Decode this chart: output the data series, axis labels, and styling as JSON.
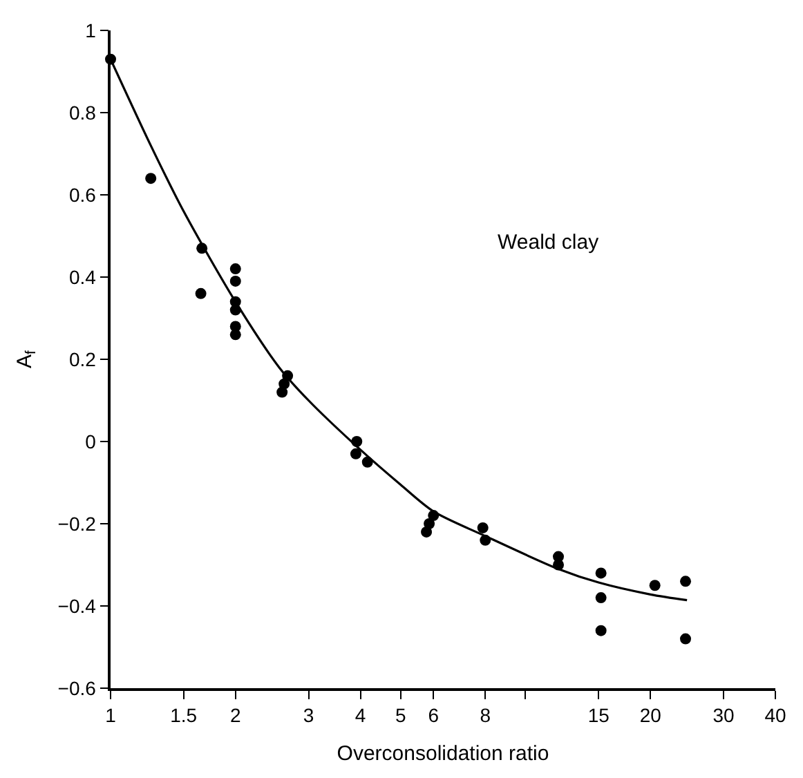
{
  "chart_data": {
    "type": "scatter",
    "xlabel": "Overconsolidation ratio",
    "ylabel": "A$_{f}$",
    "annotations": [
      "Weald clay"
    ],
    "log": "x",
    "marker": "circle",
    "xlim": [
      1,
      40
    ],
    "ylim": [
      -0.6,
      1.0
    ],
    "xticks": [
      1,
      1.5,
      2,
      3,
      4,
      5,
      6,
      8,
      {
        "value": 10,
        "label": null
      },
      15,
      20,
      30,
      40
    ],
    "yticks": [
      -0.6,
      -0.4,
      -0.2,
      0,
      0.2,
      0.4,
      0.6,
      0.8,
      1.0
    ],
    "series": [
      {
        "color": "#000000",
        "x": [
          1,
          1.25,
          1.66,
          1.65,
          2,
          2,
          2,
          2,
          2,
          2,
          2.67,
          2.62,
          2.59,
          3.92,
          3.9,
          4.16,
          6.0,
          5.86,
          5.77,
          7.89,
          8.0,
          12.0,
          12.0,
          15.2,
          15.2,
          15.2,
          20.5,
          24.3,
          24.3
        ],
        "values": [
          0.93,
          0.64,
          0.47,
          0.36,
          0.42,
          0.39,
          0.34,
          0.32,
          0.28,
          0.26,
          0.16,
          0.14,
          0.12,
          0.0,
          -0.03,
          -0.05,
          -0.18,
          -0.2,
          -0.22,
          -0.21,
          -0.24,
          -0.28,
          -0.3,
          -0.32,
          -0.38,
          -0.46,
          -0.35,
          -0.34,
          -0.48
        ]
      },
      {
        "type": "line",
        "color": "#000000",
        "marker": "none",
        "line_style": "solid",
        "x": [
          1,
          1.25,
          1.5,
          2,
          2.55,
          3,
          4,
          5,
          6,
          8,
          12,
          15,
          20,
          24.5
        ],
        "values": [
          0.93,
          0.72,
          0.56,
          0.34,
          0.18,
          0.1,
          -0.02,
          -0.105,
          -0.17,
          -0.23,
          -0.31,
          -0.343,
          -0.372,
          -0.386
        ]
      }
    ]
  }
}
